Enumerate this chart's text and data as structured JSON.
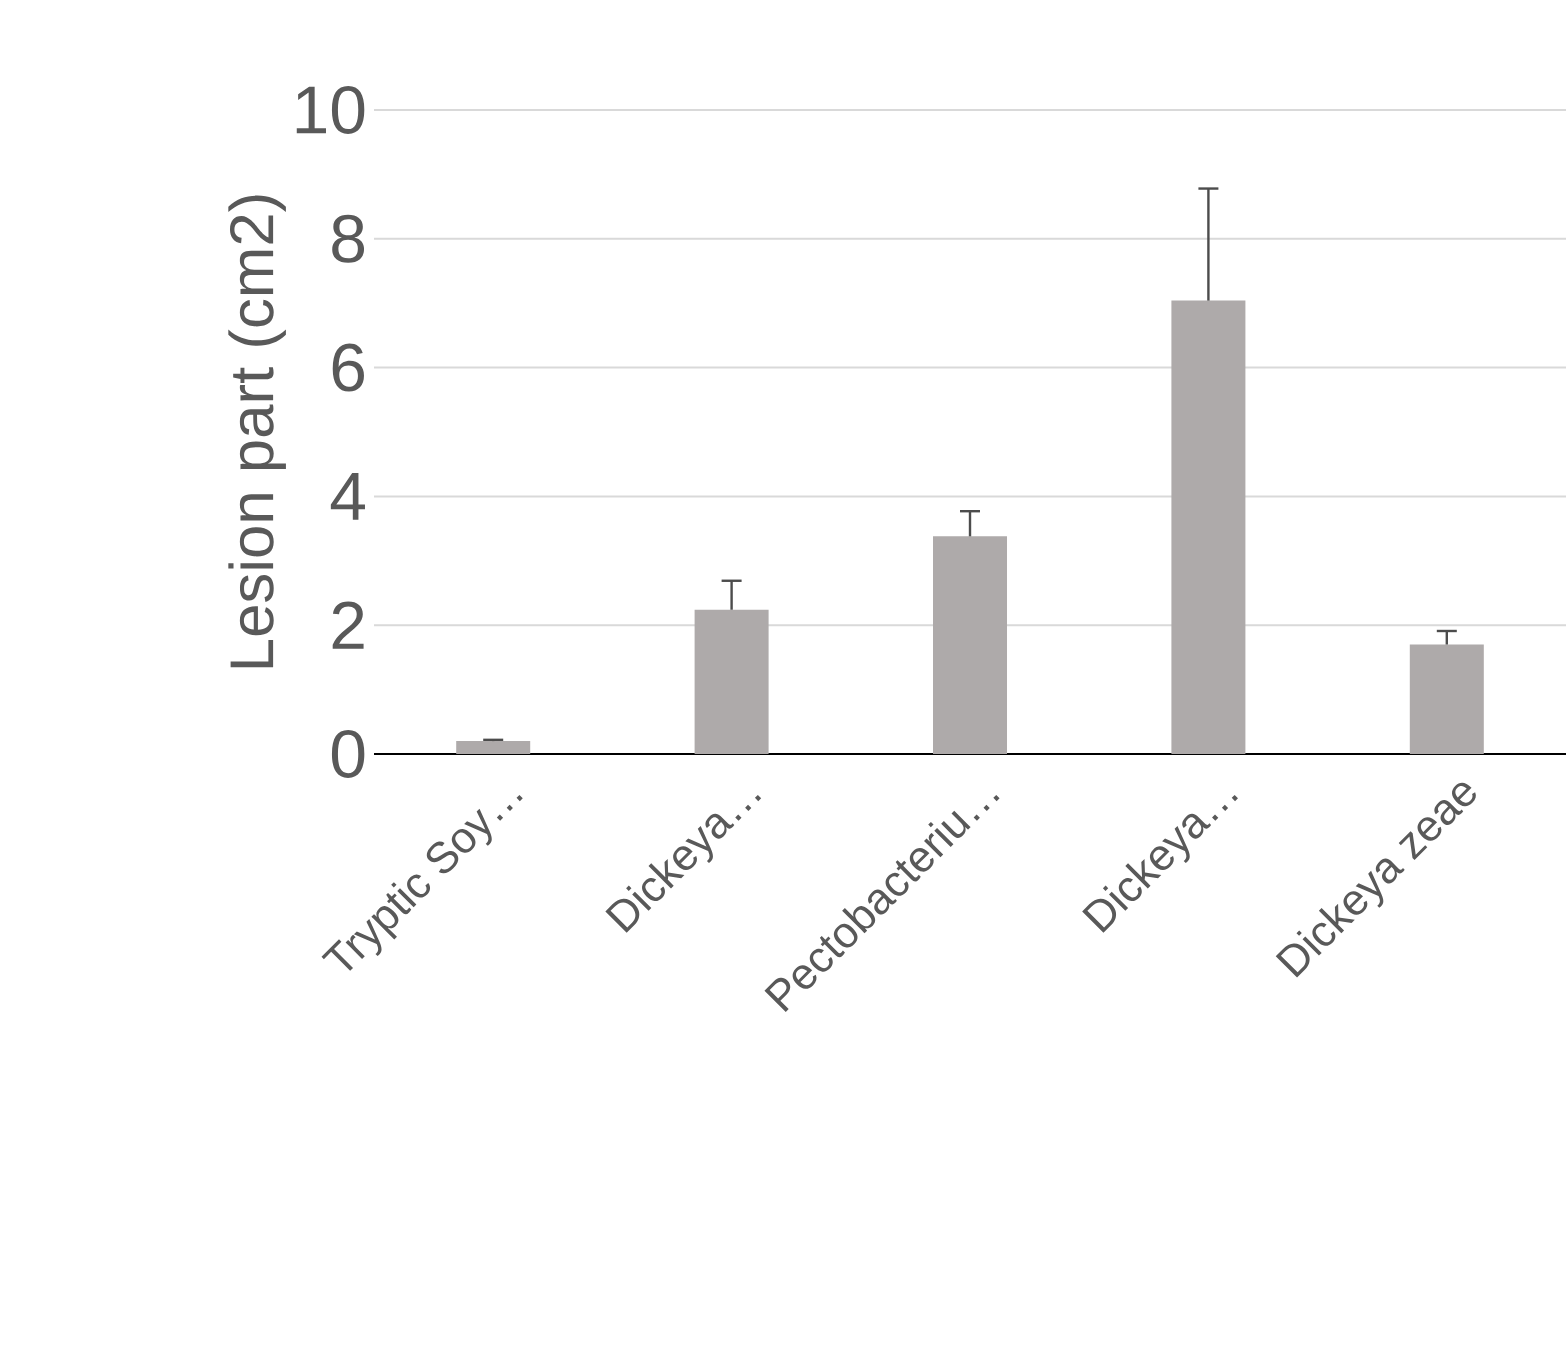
{
  "chart_data": {
    "type": "bar",
    "ylabel": "Lesion part (cm2)",
    "categories": [
      "Tryptic Soy…",
      "Dickeya…",
      "Pectobacteriu…",
      "Dickeya…",
      "Dickeya zeae"
    ],
    "values": [
      0.2,
      2.24,
      3.38,
      7.04,
      1.7
    ],
    "errors": [
      [
        0.2,
        0.22
      ],
      [
        2.24,
        2.69
      ],
      [
        3.38,
        3.77
      ],
      [
        7.04,
        8.78
      ],
      [
        1.7,
        1.91
      ]
    ],
    "color": "#aeaaaa",
    "ylim": [
      0,
      10
    ],
    "yticks": [
      0,
      2,
      4,
      6,
      8,
      10
    ],
    "grid": "y"
  }
}
